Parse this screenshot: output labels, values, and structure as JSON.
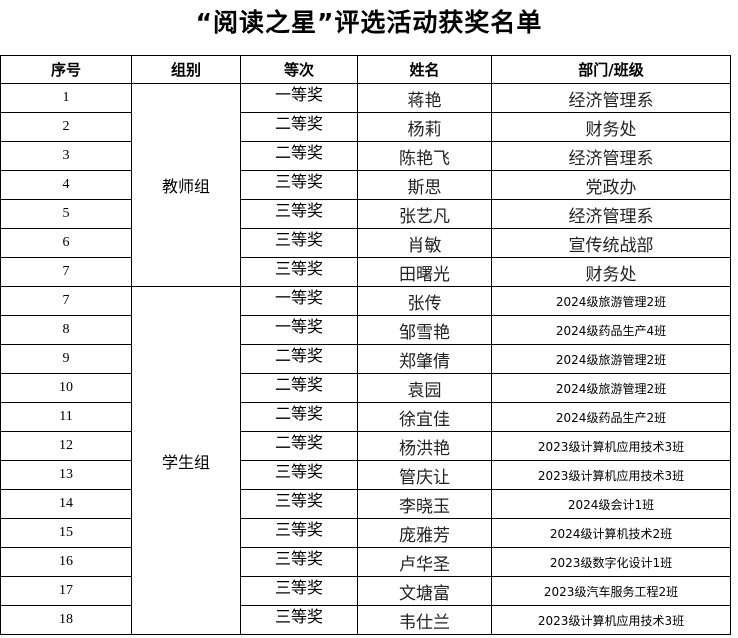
{
  "title": "“阅读之星”评选活动获奖名单",
  "headers": [
    "序号",
    "组别",
    "等次",
    "姓名",
    "部门/班级"
  ],
  "groups": [
    {
      "name": "教师组",
      "rows": [
        {
          "seq": "1",
          "award": "一等奖",
          "name": "蒋艳",
          "dept": "经济管理系"
        },
        {
          "seq": "2",
          "award": "二等奖",
          "name": "杨莉",
          "dept": "财务处"
        },
        {
          "seq": "3",
          "award": "二等奖",
          "name": "陈艳飞",
          "dept": "经济管理系"
        },
        {
          "seq": "4",
          "award": "三等奖",
          "name": "斯思",
          "dept": "党政办"
        },
        {
          "seq": "5",
          "award": "三等奖",
          "name": "张艺凡",
          "dept": "经济管理系"
        },
        {
          "seq": "6",
          "award": "三等奖",
          "name": "肖敏",
          "dept": "宣传统战部"
        },
        {
          "seq": "7",
          "award": "三等奖",
          "name": "田曙光",
          "dept": "财务处"
        }
      ]
    },
    {
      "name": "学生组",
      "rows": [
        {
          "seq": "7",
          "award": "一等奖",
          "name": "张传",
          "dept": "2024级旅游管理2班"
        },
        {
          "seq": "8",
          "award": "一等奖",
          "name": "邹雪艳",
          "dept": "2024级药品生产4班"
        },
        {
          "seq": "9",
          "award": "二等奖",
          "name": "郑肇倩",
          "dept": "2024级旅游管理2班"
        },
        {
          "seq": "10",
          "award": "二等奖",
          "name": "袁园",
          "dept": "2024级旅游管理2班"
        },
        {
          "seq": "11",
          "award": "二等奖",
          "name": "徐宜佳",
          "dept": "2024级药品生产2班"
        },
        {
          "seq": "12",
          "award": "二等奖",
          "name": "杨洪艳",
          "dept": "2023级计算机应用技术3班"
        },
        {
          "seq": "13",
          "award": "三等奖",
          "name": "管庆让",
          "dept": "2023级计算机应用技术3班"
        },
        {
          "seq": "14",
          "award": "三等奖",
          "name": "李晓玉",
          "dept": "2024级会计1班"
        },
        {
          "seq": "15",
          "award": "三等奖",
          "name": "庞雅芳",
          "dept": "2024级计算机技术2班"
        },
        {
          "seq": "16",
          "award": "三等奖",
          "name": "卢华圣",
          "dept": "2023级数字化设计1班"
        },
        {
          "seq": "17",
          "award": "三等奖",
          "name": "文塘富",
          "dept": "2023级汽车服务工程2班"
        },
        {
          "seq": "18",
          "award": "三等奖",
          "name": "韦仕兰",
          "dept": "2023级计算机应用技术3班"
        }
      ]
    }
  ]
}
